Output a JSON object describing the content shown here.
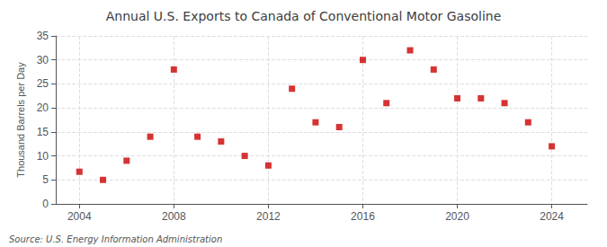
{
  "chart_data": {
    "type": "scatter",
    "title": "Annual U.S. Exports to Canada of Conventional Motor Gasoline",
    "ylabel": "Thousand Barrels per Day",
    "source": "Source: U.S. Energy Information Administration",
    "x": [
      2004,
      2005,
      2006,
      2007,
      2008,
      2009,
      2010,
      2011,
      2012,
      2013,
      2014,
      2015,
      2016,
      2017,
      2018,
      2019,
      2020,
      2021,
      2022,
      2023,
      2024
    ],
    "values": [
      6.7,
      5.0,
      9.0,
      14.0,
      28.0,
      14.0,
      13.0,
      10.0,
      8.0,
      24.0,
      17.0,
      16.0,
      30.0,
      21.0,
      32.0,
      28.0,
      22.0,
      22.0,
      21.0,
      17.0,
      12.0
    ],
    "color": "#cc0000",
    "marker": "square",
    "xlim": [
      2003.0,
      2025.5
    ],
    "ylim": [
      0,
      35
    ],
    "xticks": [
      2004,
      2008,
      2012,
      2016,
      2020,
      2024
    ],
    "yticks": [
      0,
      5,
      10,
      15,
      20,
      25,
      30,
      35
    ],
    "grid": true
  }
}
